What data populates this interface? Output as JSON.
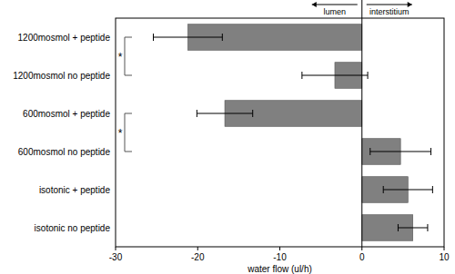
{
  "chart_data": {
    "type": "bar",
    "orientation": "horizontal",
    "categories": [
      "1200mosmol + peptide",
      "1200mosmol no peptide",
      "600mosmol + peptide",
      "600mosmol no peptide",
      "isotonic + peptide",
      "isotonic no peptide"
    ],
    "values": [
      -21.2,
      -3.3,
      -16.7,
      4.7,
      5.6,
      6.2
    ],
    "errors": [
      4.2,
      4.0,
      3.4,
      3.7,
      3.0,
      1.8
    ],
    "color": "#808080",
    "xlabel": "water flow (ul/h)",
    "xlim": [
      -30,
      10
    ],
    "xticks": [
      -30,
      -20,
      -10,
      0,
      10
    ],
    "grid": false,
    "annotations": {
      "arrows": [
        {
          "text": "lumen",
          "side": "negative"
        },
        {
          "text": "interstitium",
          "side": "positive"
        }
      ],
      "brackets": [
        {
          "text": "*",
          "categories": [
            0,
            1
          ]
        },
        {
          "text": "*",
          "categories": [
            2,
            3
          ]
        }
      ]
    }
  }
}
